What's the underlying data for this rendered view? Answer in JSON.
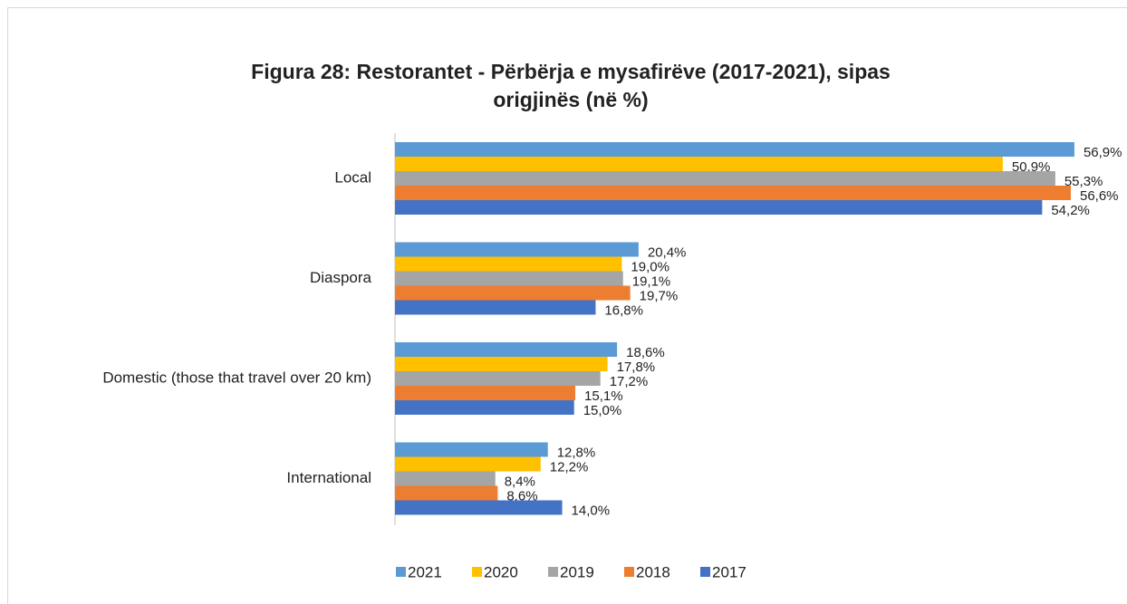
{
  "chart_data": {
    "type": "bar",
    "orientation": "horizontal",
    "title": "Figura 28: Restorantet - Përbërja e mysafirëve (2017-2021), sipas origjinës (në %)",
    "categories": [
      "Local",
      "Diaspora",
      "Domestic (those that travel over 20 km)",
      "International"
    ],
    "series": [
      {
        "name": "2021",
        "color": "#5b9bd5",
        "values": [
          56.9,
          20.4,
          18.6,
          12.8
        ],
        "value_labels": [
          "56,9%",
          "20,4%",
          "18,6%",
          "12,8%"
        ]
      },
      {
        "name": "2020",
        "color": "#ffc000",
        "values": [
          50.9,
          19.0,
          17.8,
          12.2
        ],
        "value_labels": [
          "50,9%",
          "19,0%",
          "17,8%",
          "12,2%"
        ]
      },
      {
        "name": "2019",
        "color": "#a5a5a5",
        "values": [
          55.3,
          19.1,
          17.2,
          8.4
        ],
        "value_labels": [
          "55,3%",
          "19,1%",
          "17,2%",
          "8,4%"
        ]
      },
      {
        "name": "2018",
        "color": "#ed7d31",
        "values": [
          56.6,
          19.7,
          15.1,
          8.6
        ],
        "value_labels": [
          "56,6%",
          "19,7%",
          "15,1%",
          "8,6%"
        ]
      },
      {
        "name": "2017",
        "color": "#4472c4",
        "values": [
          54.2,
          16.8,
          15.0,
          14.0
        ],
        "value_labels": [
          "54,2%",
          "16,8%",
          "15,0%",
          "14,0%"
        ]
      }
    ],
    "legend": "bottom"
  }
}
